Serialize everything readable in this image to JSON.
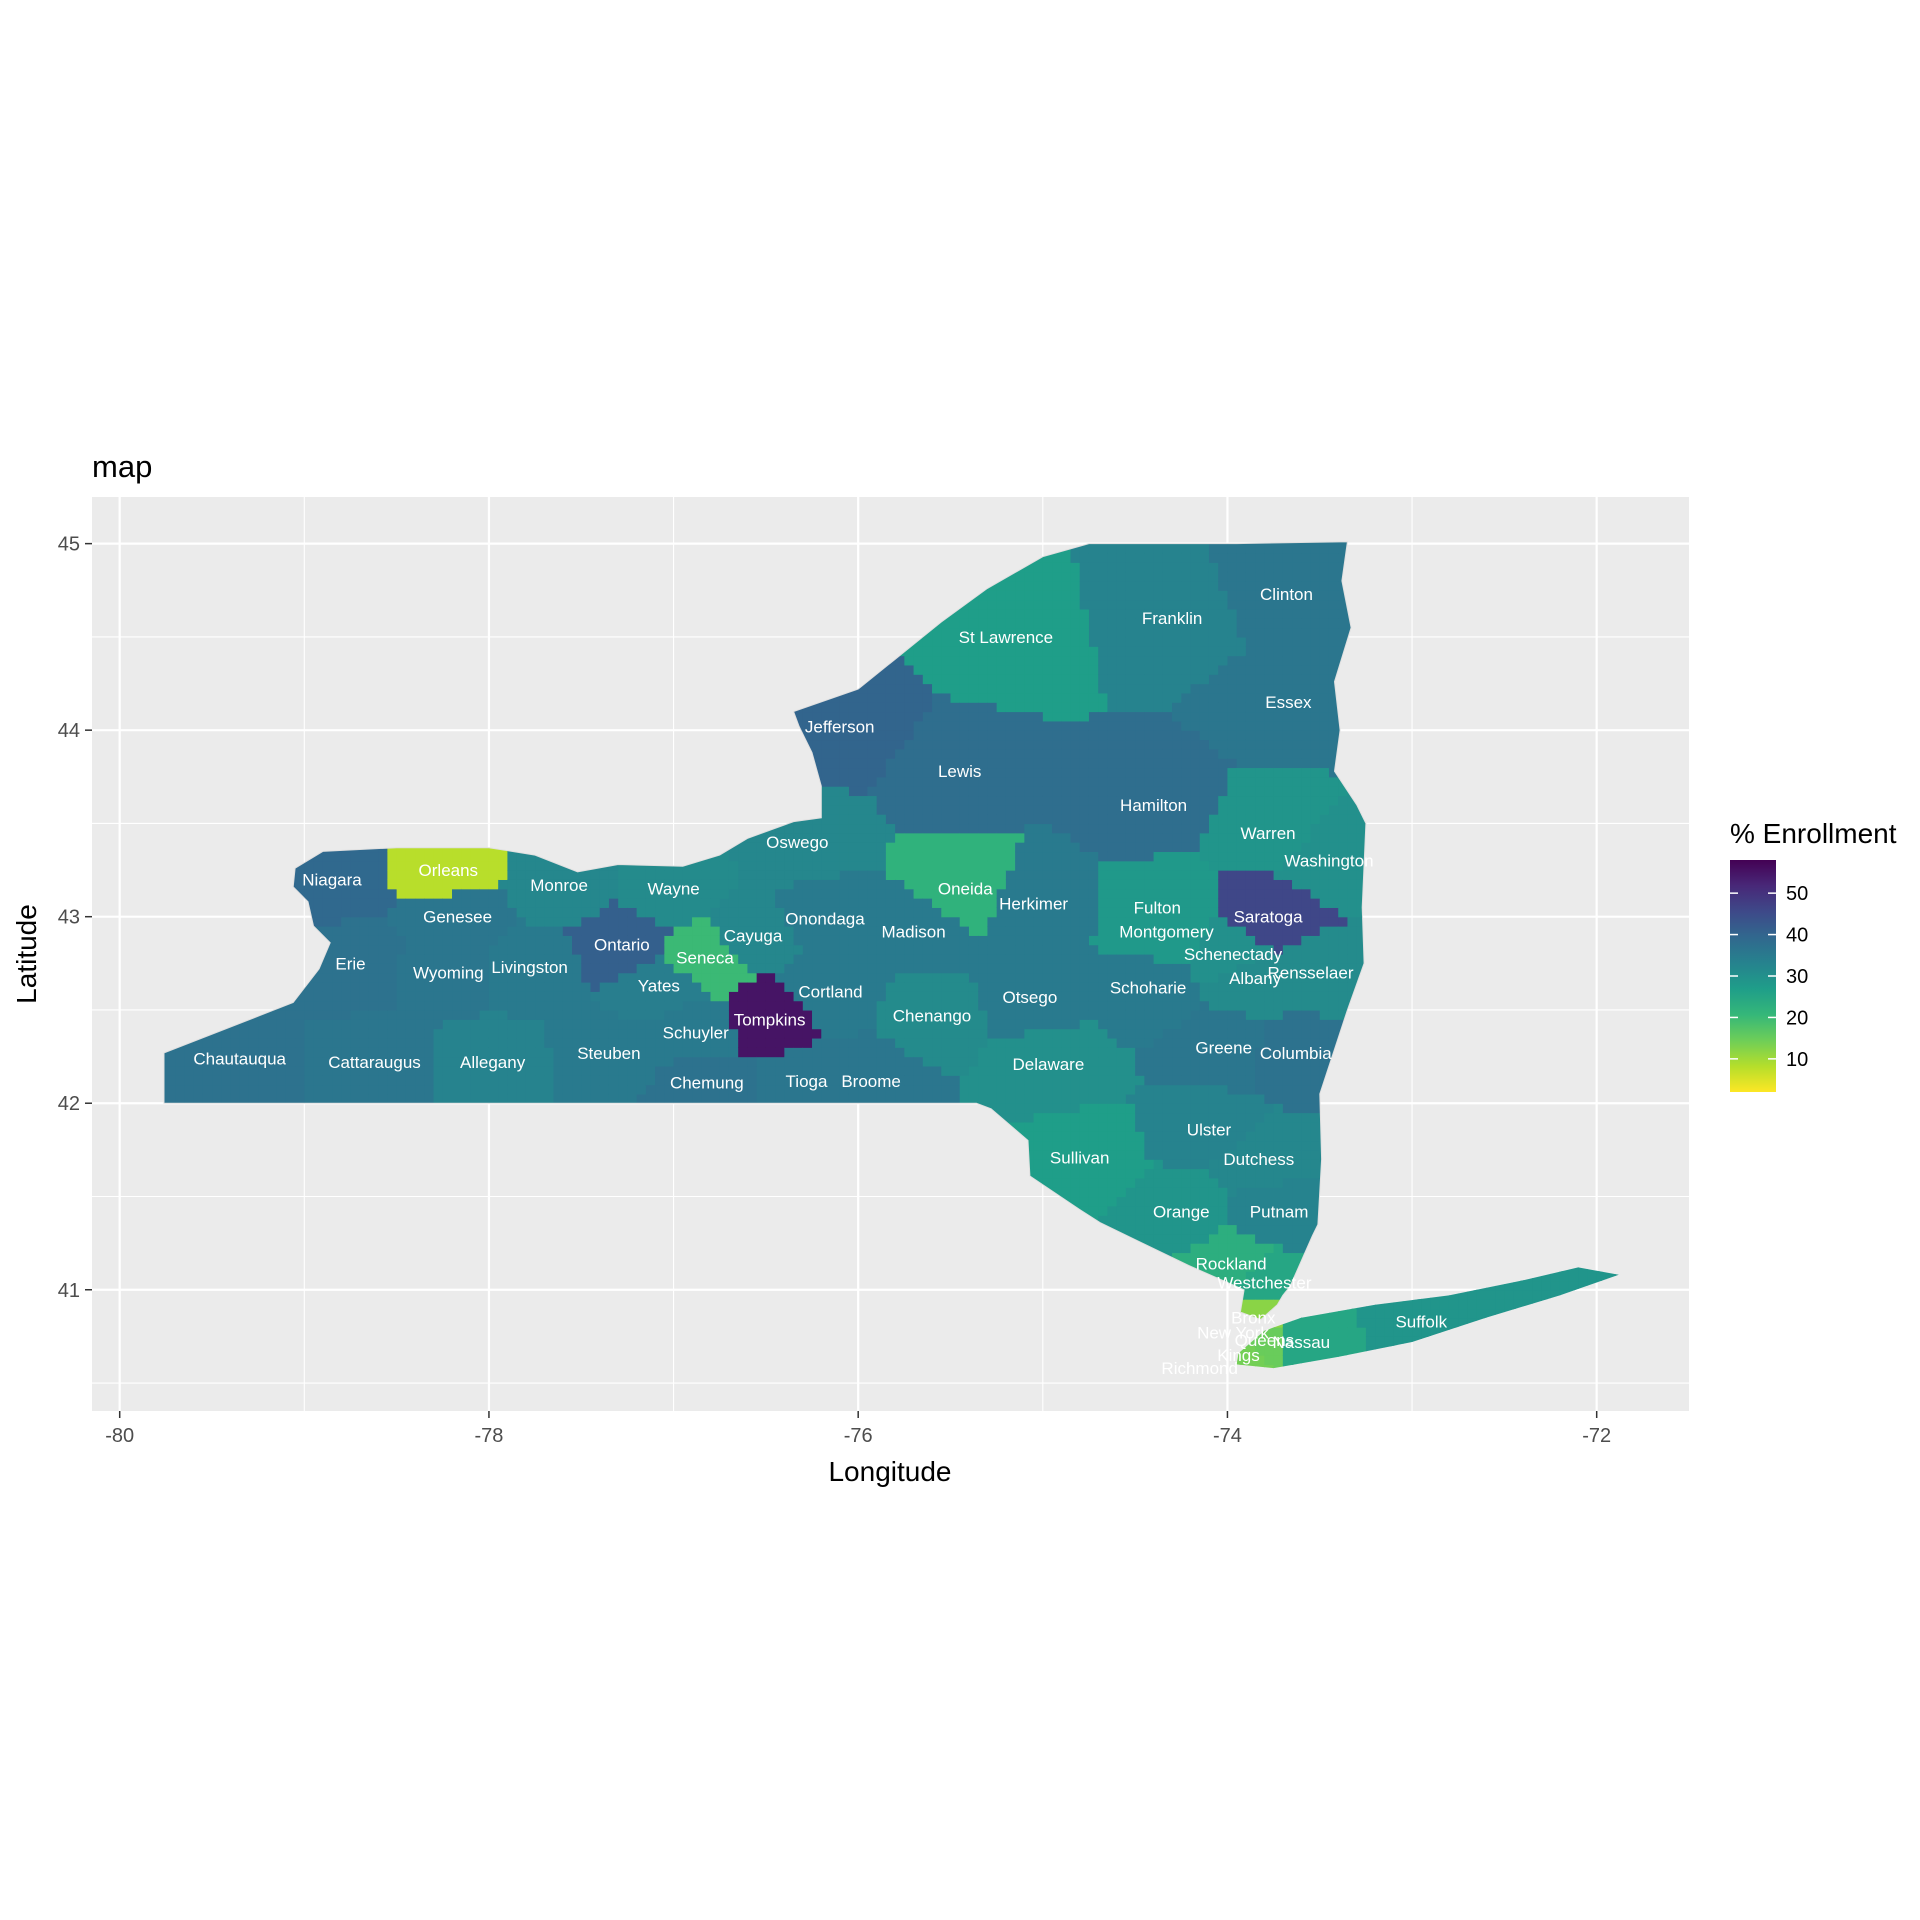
{
  "chart_data": {
    "type": "choropleth",
    "title": "map",
    "xlabel": "Longitude",
    "ylabel": "Latitude",
    "xlim": [
      -80.15,
      -71.5
    ],
    "ylim": [
      40.35,
      45.25
    ],
    "x_ticks": [
      -80,
      -78,
      -76,
      -74,
      -72
    ],
    "y_ticks": [
      41,
      42,
      43,
      44,
      45
    ],
    "grid": true,
    "legend": {
      "title": "% Enrollment",
      "position": "right",
      "ticks": [
        10,
        20,
        30,
        40,
        50
      ],
      "range": [
        2,
        58
      ]
    },
    "counties": [
      {
        "name": "St Lawrence",
        "lon": -75.2,
        "lat": 44.5,
        "value": 27
      },
      {
        "name": "Franklin",
        "lon": -74.3,
        "lat": 44.6,
        "value": 33
      },
      {
        "name": "Clinton",
        "lon": -73.68,
        "lat": 44.73,
        "value": 36
      },
      {
        "name": "Essex",
        "lon": -73.67,
        "lat": 44.15,
        "value": 36
      },
      {
        "name": "Jefferson",
        "lon": -76.1,
        "lat": 44.02,
        "value": 40
      },
      {
        "name": "Lewis",
        "lon": -75.45,
        "lat": 43.78,
        "value": 38
      },
      {
        "name": "Hamilton",
        "lon": -74.4,
        "lat": 43.6,
        "value": 38
      },
      {
        "name": "Warren",
        "lon": -73.78,
        "lat": 43.45,
        "value": 29
      },
      {
        "name": "Washington",
        "lon": -73.45,
        "lat": 43.3,
        "value": 30
      },
      {
        "name": "Oswego",
        "lon": -76.33,
        "lat": 43.4,
        "value": 32
      },
      {
        "name": "Oneida",
        "lon": -75.42,
        "lat": 43.15,
        "value": 22
      },
      {
        "name": "Herkimer",
        "lon": -75.05,
        "lat": 43.07,
        "value": 35
      },
      {
        "name": "Fulton",
        "lon": -74.38,
        "lat": 43.05,
        "value": 28
      },
      {
        "name": "Saratoga",
        "lon": -73.78,
        "lat": 43.0,
        "value": 46
      },
      {
        "name": "Montgomery",
        "lon": -74.33,
        "lat": 42.92,
        "value": 28
      },
      {
        "name": "Schenectady",
        "lon": -73.97,
        "lat": 42.8,
        "value": 30
      },
      {
        "name": "Albany",
        "lon": -73.85,
        "lat": 42.67,
        "value": 31
      },
      {
        "name": "Rensselaer",
        "lon": -73.55,
        "lat": 42.7,
        "value": 31
      },
      {
        "name": "Schoharie",
        "lon": -74.43,
        "lat": 42.62,
        "value": 35
      },
      {
        "name": "Niagara",
        "lon": -78.85,
        "lat": 43.2,
        "value": 39
      },
      {
        "name": "Orleans",
        "lon": -78.22,
        "lat": 43.25,
        "value": 8
      },
      {
        "name": "Monroe",
        "lon": -77.62,
        "lat": 43.17,
        "value": 32
      },
      {
        "name": "Wayne",
        "lon": -77.0,
        "lat": 43.15,
        "value": 31
      },
      {
        "name": "Genesee",
        "lon": -78.17,
        "lat": 43.0,
        "value": 36
      },
      {
        "name": "Erie",
        "lon": -78.75,
        "lat": 42.75,
        "value": 37
      },
      {
        "name": "Ontario",
        "lon": -77.28,
        "lat": 42.85,
        "value": 41
      },
      {
        "name": "Seneca",
        "lon": -76.83,
        "lat": 42.78,
        "value": 20
      },
      {
        "name": "Cayuga",
        "lon": -76.57,
        "lat": 42.9,
        "value": 32
      },
      {
        "name": "Onondaga",
        "lon": -76.18,
        "lat": 42.99,
        "value": 35
      },
      {
        "name": "Madison",
        "lon": -75.7,
        "lat": 42.92,
        "value": 35
      },
      {
        "name": "Wyoming",
        "lon": -78.22,
        "lat": 42.7,
        "value": 36
      },
      {
        "name": "Livingston",
        "lon": -77.78,
        "lat": 42.73,
        "value": 35
      },
      {
        "name": "Yates",
        "lon": -77.08,
        "lat": 42.63,
        "value": 34
      },
      {
        "name": "Cortland",
        "lon": -76.15,
        "lat": 42.6,
        "value": 35
      },
      {
        "name": "Tompkins",
        "lon": -76.48,
        "lat": 42.45,
        "value": 55
      },
      {
        "name": "Schuyler",
        "lon": -76.88,
        "lat": 42.38,
        "value": 35
      },
      {
        "name": "Chenango",
        "lon": -75.6,
        "lat": 42.47,
        "value": 31
      },
      {
        "name": "Otsego",
        "lon": -75.07,
        "lat": 42.57,
        "value": 35
      },
      {
        "name": "Delaware",
        "lon": -74.97,
        "lat": 42.21,
        "value": 30
      },
      {
        "name": "Greene",
        "lon": -74.02,
        "lat": 42.3,
        "value": 36
      },
      {
        "name": "Columbia",
        "lon": -73.63,
        "lat": 42.27,
        "value": 37
      },
      {
        "name": "Chautauqua",
        "lon": -79.35,
        "lat": 42.24,
        "value": 37
      },
      {
        "name": "Cattaraugus",
        "lon": -78.62,
        "lat": 42.22,
        "value": 36
      },
      {
        "name": "Allegany",
        "lon": -77.98,
        "lat": 42.22,
        "value": 33
      },
      {
        "name": "Steuben",
        "lon": -77.35,
        "lat": 42.27,
        "value": 35
      },
      {
        "name": "Chemung",
        "lon": -76.82,
        "lat": 42.11,
        "value": 37
      },
      {
        "name": "Tioga",
        "lon": -76.28,
        "lat": 42.12,
        "value": 36
      },
      {
        "name": "Broome",
        "lon": -75.93,
        "lat": 42.12,
        "value": 36
      },
      {
        "name": "Sullivan",
        "lon": -74.8,
        "lat": 41.71,
        "value": 27
      },
      {
        "name": "Ulster",
        "lon": -74.1,
        "lat": 41.86,
        "value": 33
      },
      {
        "name": "Dutchess",
        "lon": -73.83,
        "lat": 41.7,
        "value": 32
      },
      {
        "name": "Orange",
        "lon": -74.25,
        "lat": 41.42,
        "value": 29
      },
      {
        "name": "Putnam",
        "lon": -73.72,
        "lat": 41.42,
        "value": 33
      },
      {
        "name": "Rockland",
        "lon": -73.98,
        "lat": 41.14,
        "value": 23
      },
      {
        "name": "Westchester",
        "lon": -73.8,
        "lat": 41.04,
        "value": 25
      },
      {
        "name": "Bronx",
        "lon": -73.86,
        "lat": 40.85,
        "value": 12
      },
      {
        "name": "New York",
        "lon": -73.97,
        "lat": 40.77,
        "value": 40
      },
      {
        "name": "Queens",
        "lon": -73.8,
        "lat": 40.73,
        "value": 15
      },
      {
        "name": "Kings",
        "lon": -73.94,
        "lat": 40.65,
        "value": 14
      },
      {
        "name": "Richmond",
        "lon": -74.15,
        "lat": 40.58,
        "value": 20
      },
      {
        "name": "Nassau",
        "lon": -73.6,
        "lat": 40.72,
        "value": 25
      },
      {
        "name": "Suffolk",
        "lon": -72.95,
        "lat": 40.83,
        "value": 29
      }
    ]
  }
}
